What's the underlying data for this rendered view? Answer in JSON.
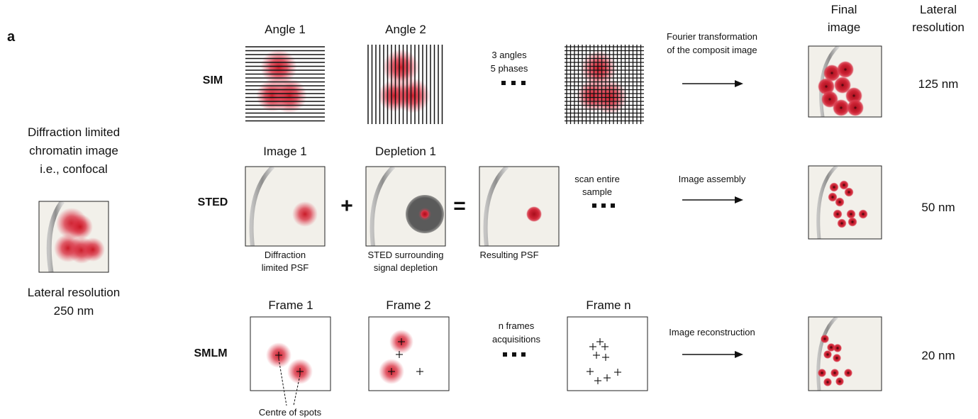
{
  "panel_label": "a",
  "left": {
    "caption_lines": [
      "Diffraction limited",
      "chromatin image",
      "i.e., confocal"
    ],
    "resolution_lines": [
      "Lateral resolution",
      "250 nm"
    ]
  },
  "headers": {
    "final_image": [
      "Final",
      "image"
    ],
    "lateral_resolution": [
      "Lateral",
      "resolution"
    ]
  },
  "rows": {
    "sim": {
      "label": "SIM",
      "titles": [
        "Angle 1",
        "Angle 2"
      ],
      "step_note": [
        "3 angles",
        "5 phases"
      ],
      "process_note": [
        "Fourier transformation",
        "of the composit image"
      ],
      "resolution": "125 nm"
    },
    "sted": {
      "label": "STED",
      "titles": [
        "Image 1",
        "Depletion 1"
      ],
      "plus": "+",
      "equals": "=",
      "captions": {
        "psf": [
          "Diffraction",
          "limited  PSF"
        ],
        "depletion": [
          "STED surrounding",
          "signal depletion"
        ],
        "result": [
          "Resulting PSF"
        ]
      },
      "step_note": [
        "scan entire",
        "sample"
      ],
      "process_note": [
        "Image assembly"
      ],
      "resolution": "50 nm"
    },
    "smlm": {
      "label": "SMLM",
      "titles": [
        "Frame 1",
        "Frame 2",
        "Frame n"
      ],
      "step_note": [
        "n frames",
        "acquisitions"
      ],
      "process_note": [
        "Image reconstruction"
      ],
      "centre_caption": "Centre of spots",
      "resolution": "20 nm"
    }
  },
  "colors": {
    "spot_red": "#d42030",
    "spot_dark": "#b01523",
    "depletion_gray": "#5a5a5a",
    "sample_bg": "#f2f0ea",
    "edge_gray": "#8a8a8a"
  }
}
